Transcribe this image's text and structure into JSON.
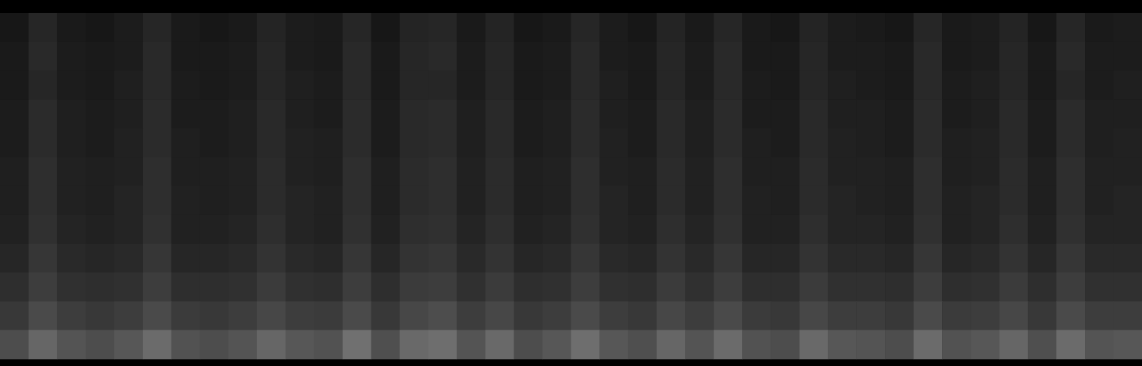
{
  "chart_data": {
    "type": "heatmap",
    "tick_labels": false,
    "color": "#ffffff",
    "zlim": [
      0,
      100
    ],
    "cells": [
      [
        9,
        15,
        10,
        9,
        11,
        15,
        10,
        9,
        10,
        14,
        11,
        10,
        15,
        9,
        14,
        15,
        10,
        14,
        9,
        10,
        15,
        11,
        9,
        14,
        10,
        15,
        10,
        9,
        14,
        11,
        10,
        9,
        15,
        10,
        11,
        14,
        9,
        15,
        10,
        11
      ],
      [
        10,
        16,
        11,
        10,
        11,
        16,
        10,
        10,
        11,
        15,
        11,
        10,
        16,
        10,
        15,
        16,
        11,
        15,
        10,
        11,
        16,
        11,
        10,
        15,
        11,
        16,
        10,
        10,
        15,
        11,
        11,
        10,
        16,
        10,
        11,
        15,
        10,
        16,
        11,
        11
      ],
      [
        10,
        15,
        11,
        10,
        12,
        16,
        11,
        10,
        11,
        15,
        12,
        11,
        16,
        10,
        15,
        15,
        11,
        15,
        10,
        11,
        16,
        12,
        10,
        15,
        11,
        16,
        11,
        10,
        15,
        12,
        11,
        10,
        16,
        11,
        12,
        15,
        10,
        15,
        11,
        12
      ],
      [
        11,
        17,
        12,
        11,
        12,
        17,
        11,
        11,
        12,
        16,
        12,
        11,
        17,
        11,
        16,
        17,
        12,
        16,
        11,
        12,
        17,
        12,
        11,
        16,
        12,
        17,
        11,
        11,
        16,
        12,
        12,
        11,
        17,
        11,
        12,
        16,
        11,
        17,
        12,
        12
      ],
      [
        11,
        17,
        12,
        11,
        13,
        17,
        12,
        11,
        12,
        16,
        13,
        12,
        17,
        11,
        16,
        17,
        12,
        16,
        11,
        12,
        17,
        13,
        11,
        16,
        12,
        17,
        12,
        11,
        16,
        13,
        12,
        11,
        17,
        12,
        13,
        16,
        11,
        17,
        12,
        13
      ],
      [
        12,
        18,
        13,
        12,
        13,
        18,
        12,
        12,
        13,
        17,
        13,
        12,
        18,
        12,
        17,
        18,
        13,
        17,
        12,
        13,
        18,
        13,
        12,
        17,
        13,
        18,
        12,
        12,
        17,
        13,
        13,
        12,
        18,
        12,
        13,
        17,
        12,
        18,
        13,
        13
      ],
      [
        12,
        18,
        13,
        12,
        14,
        18,
        13,
        12,
        13,
        17,
        14,
        13,
        18,
        12,
        17,
        18,
        13,
        17,
        12,
        13,
        18,
        14,
        12,
        17,
        13,
        18,
        13,
        12,
        17,
        14,
        13,
        12,
        18,
        13,
        14,
        17,
        12,
        18,
        13,
        14
      ],
      [
        13,
        19,
        14,
        13,
        14,
        19,
        13,
        13,
        14,
        18,
        14,
        13,
        19,
        13,
        18,
        19,
        14,
        18,
        13,
        14,
        19,
        14,
        13,
        18,
        14,
        19,
        13,
        13,
        18,
        14,
        14,
        13,
        19,
        13,
        14,
        18,
        13,
        19,
        14,
        14
      ],
      [
        15,
        21,
        16,
        15,
        16,
        21,
        15,
        15,
        16,
        20,
        16,
        15,
        21,
        15,
        20,
        21,
        16,
        20,
        15,
        16,
        21,
        16,
        15,
        20,
        16,
        21,
        15,
        15,
        20,
        16,
        16,
        15,
        21,
        15,
        16,
        20,
        15,
        21,
        16,
        16
      ],
      [
        18,
        24,
        19,
        18,
        19,
        24,
        18,
        18,
        19,
        23,
        19,
        18,
        24,
        18,
        23,
        24,
        19,
        23,
        18,
        19,
        24,
        19,
        18,
        23,
        19,
        24,
        18,
        18,
        23,
        19,
        19,
        18,
        24,
        18,
        19,
        23,
        18,
        24,
        19,
        19
      ],
      [
        22,
        29,
        24,
        22,
        24,
        29,
        23,
        22,
        24,
        28,
        24,
        23,
        29,
        22,
        28,
        30,
        24,
        28,
        22,
        24,
        29,
        24,
        22,
        28,
        24,
        29,
        23,
        22,
        28,
        24,
        24,
        22,
        29,
        23,
        24,
        28,
        22,
        29,
        24,
        24
      ],
      [
        30,
        40,
        33,
        30,
        34,
        42,
        32,
        30,
        33,
        40,
        34,
        32,
        44,
        31,
        41,
        43,
        33,
        41,
        30,
        34,
        43,
        34,
        31,
        40,
        33,
        42,
        32,
        30,
        41,
        34,
        33,
        30,
        42,
        32,
        34,
        40,
        31,
        42,
        33,
        34
      ]
    ]
  }
}
